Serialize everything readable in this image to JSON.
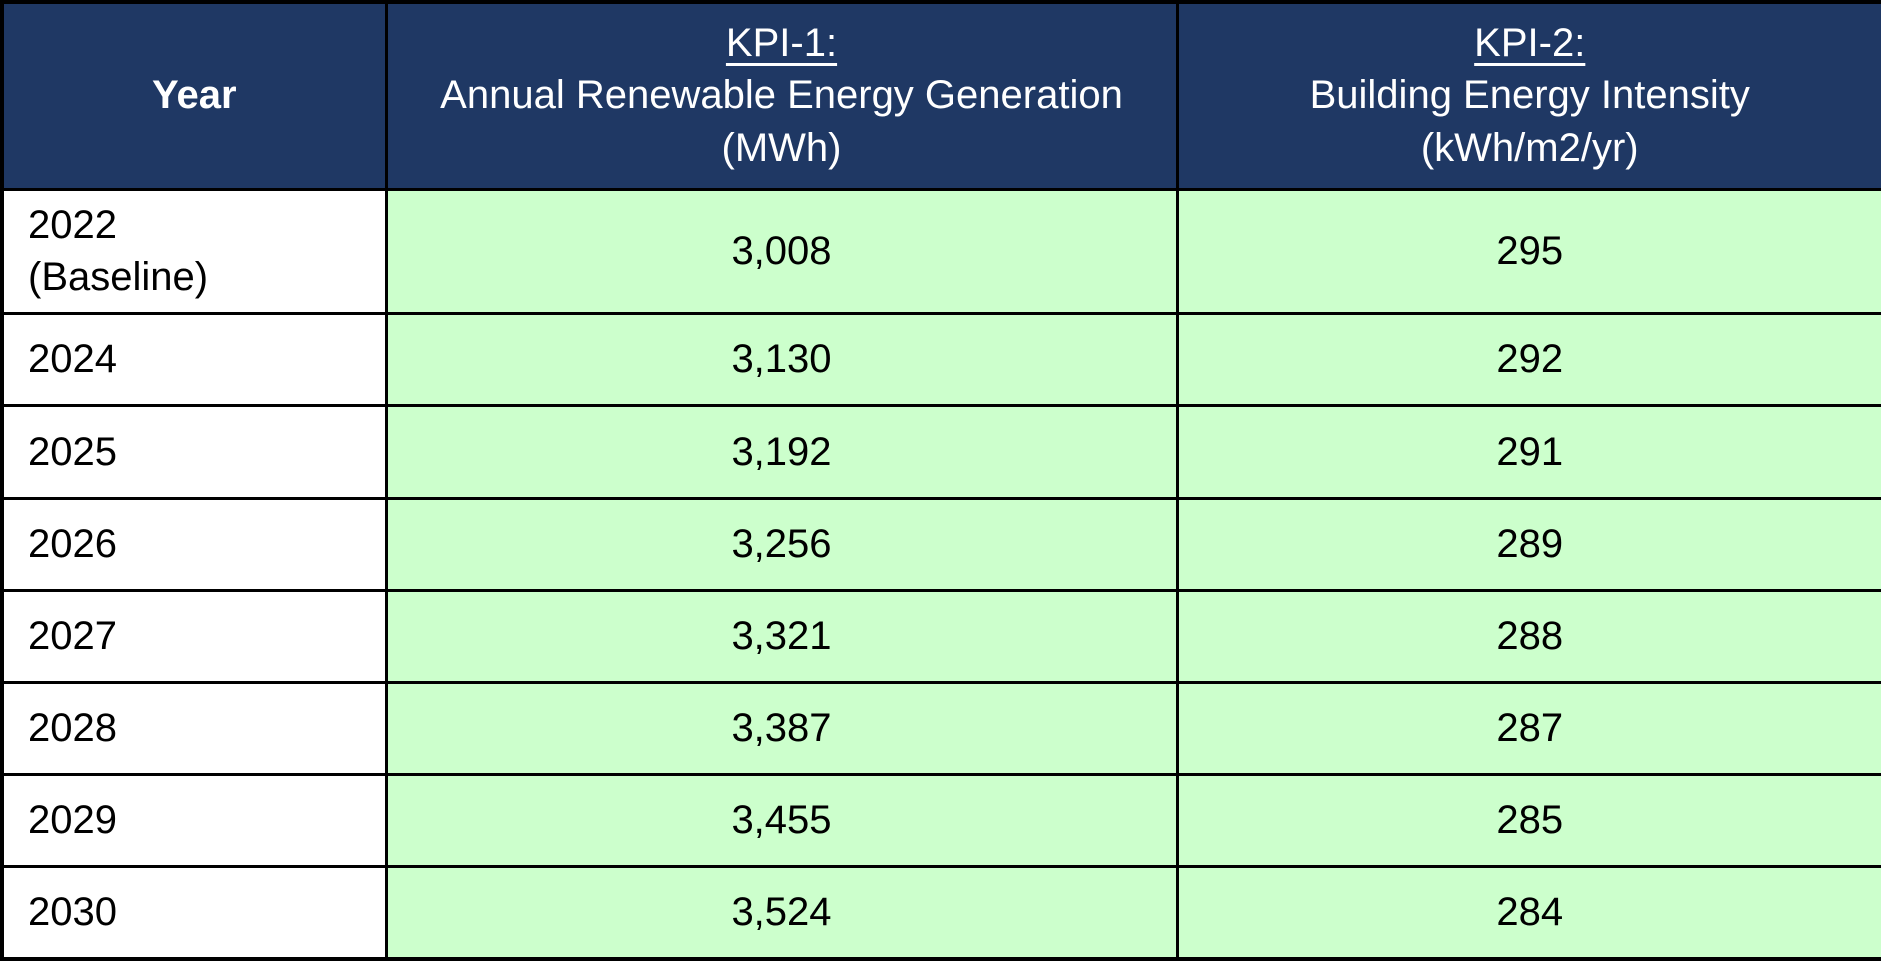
{
  "colors": {
    "header_bg": "#1F3864",
    "header_text": "#FFFFFF",
    "value_cell_bg": "#CCFFCC",
    "year_cell_bg": "#FFFFFF",
    "border": "#000000",
    "body_text": "#000000"
  },
  "table": {
    "header": {
      "year_label": "Year",
      "kpi1": {
        "title": "KPI-1:",
        "name": "Annual Renewable Energy Generation",
        "unit": "(MWh)"
      },
      "kpi2": {
        "title": "KPI-2:",
        "name": "Building Energy Intensity",
        "unit": "(kWh/m2/yr)"
      }
    },
    "rows": [
      {
        "year": "2022\n(Baseline)",
        "kpi1": "3,008",
        "kpi2": "295"
      },
      {
        "year": "2024",
        "kpi1": "3,130",
        "kpi2": "292"
      },
      {
        "year": "2025",
        "kpi1": "3,192",
        "kpi2": "291"
      },
      {
        "year": "2026",
        "kpi1": "3,256",
        "kpi2": "289"
      },
      {
        "year": "2027",
        "kpi1": "3,321",
        "kpi2": "288"
      },
      {
        "year": "2028",
        "kpi1": "3,387",
        "kpi2": "287"
      },
      {
        "year": "2029",
        "kpi1": "3,455",
        "kpi2": "285"
      },
      {
        "year": "2030",
        "kpi1": "3,524",
        "kpi2": "284"
      }
    ]
  },
  "chart_data": {
    "type": "table",
    "columns": [
      "Year",
      "KPI-1: Annual Renewable Energy Generation (MWh)",
      "KPI-2: Building Energy Intensity (kWh/m2/yr)"
    ],
    "years": [
      "2022 (Baseline)",
      "2024",
      "2025",
      "2026",
      "2027",
      "2028",
      "2029",
      "2030"
    ],
    "series": [
      {
        "name": "Annual Renewable Energy Generation (MWh)",
        "values": [
          3008,
          3130,
          3192,
          3256,
          3321,
          3387,
          3455,
          3524
        ]
      },
      {
        "name": "Building Energy Intensity (kWh/m2/yr)",
        "values": [
          295,
          292,
          291,
          289,
          288,
          287,
          285,
          284
        ]
      }
    ]
  }
}
